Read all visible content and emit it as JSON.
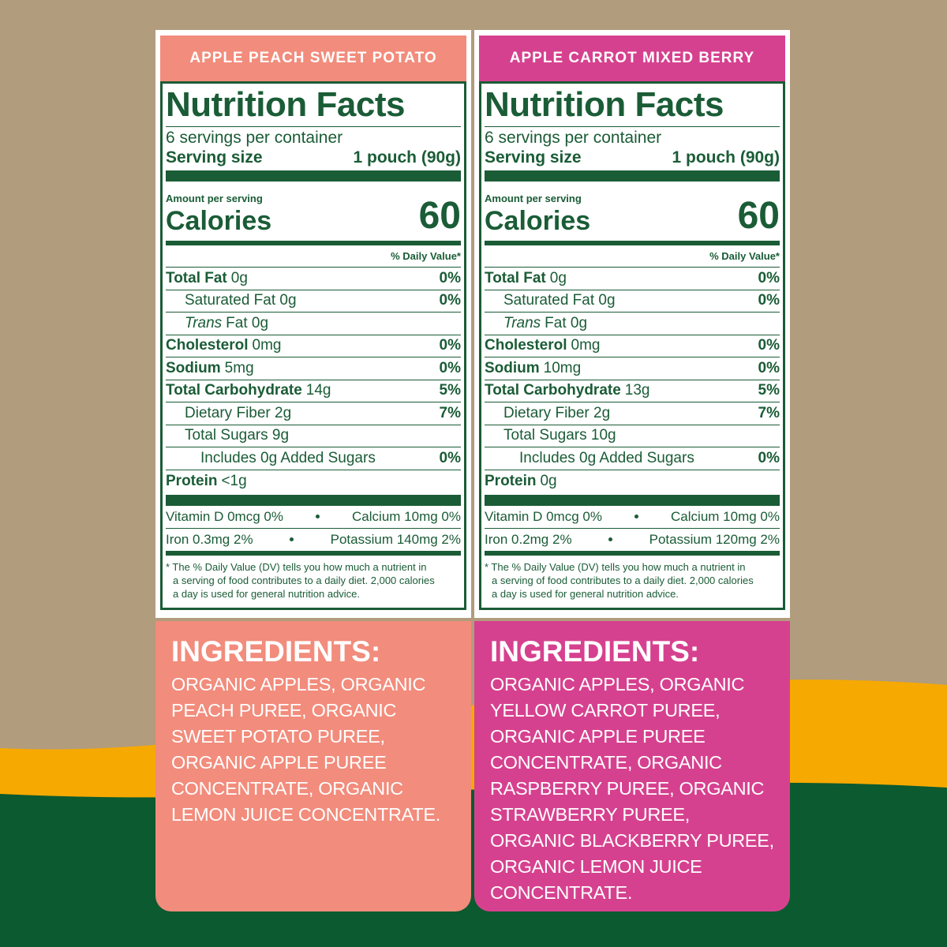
{
  "panels": [
    {
      "product": "APPLE PEACH SWEET POTATO",
      "color": "#f28c7c",
      "nutrition": {
        "title": "Nutrition Facts",
        "servings": "6 servings per container",
        "serving_size_label": "Serving size",
        "serving_size": "1 pouch (90g)",
        "amount_per_serving": "Amount per serving",
        "calories_label": "Calories",
        "calories": "60",
        "daily_value_header": "% Daily Value*",
        "rows": [
          {
            "name": "Total Fat",
            "amount": "0g",
            "dv": "0%"
          },
          {
            "name": "Saturated Fat 0g",
            "dv": "0%"
          },
          {
            "italic": "Trans",
            "name": "Fat 0g"
          },
          {
            "name": "Cholesterol",
            "amount": "0mg",
            "dv": "0%"
          },
          {
            "name": "Sodium",
            "amount": "5mg",
            "dv": "0%"
          },
          {
            "name": "Total Carbohydrate",
            "amount": "14g",
            "dv": "5%"
          },
          {
            "name": "Dietary Fiber 2g",
            "dv": "7%"
          },
          {
            "name": "Total Sugars 9g"
          },
          {
            "name": "Includes 0g Added Sugars",
            "dv": "0%"
          },
          {
            "name": "Protein",
            "amount": "<1g"
          }
        ],
        "vitamins": [
          [
            "Vitamin D 0mcg 0%",
            "Calcium 10mg 0%"
          ],
          [
            "Iron 0.3mg 2%",
            "Potassium 140mg 2%"
          ]
        ],
        "footnote": [
          "* The % Daily Value (DV) tells you how much a nutrient in",
          "a serving of food contributes to a daily diet. 2,000 calories",
          "a day is used for general nutrition advice."
        ]
      },
      "ingredients": {
        "heading": "INGREDIENTS:",
        "lines": [
          "ORGANIC APPLES, ORGANIC",
          "PEACH PUREE, ORGANIC",
          "SWEET POTATO PUREE,",
          "ORGANIC APPLE PUREE",
          "CONCENTRATE, ORGANIC",
          "LEMON JUICE CONCENTRATE."
        ]
      }
    },
    {
      "product": "APPLE CARROT MIXED BERRY",
      "color": "#d6418f",
      "nutrition": {
        "title": "Nutrition Facts",
        "servings": "6 servings per container",
        "serving_size_label": "Serving size",
        "serving_size": "1 pouch (90g)",
        "amount_per_serving": "Amount per serving",
        "calories_label": "Calories",
        "calories": "60",
        "daily_value_header": "% Daily Value*",
        "rows": [
          {
            "name": "Total Fat",
            "amount": "0g",
            "dv": "0%"
          },
          {
            "name": "Saturated Fat 0g",
            "dv": "0%"
          },
          {
            "italic": "Trans",
            "name": "Fat 0g"
          },
          {
            "name": "Cholesterol",
            "amount": "0mg",
            "dv": "0%"
          },
          {
            "name": "Sodium",
            "amount": "10mg",
            "dv": "0%"
          },
          {
            "name": "Total Carbohydrate",
            "amount": "13g",
            "dv": "5%"
          },
          {
            "name": "Dietary Fiber 2g",
            "dv": "7%"
          },
          {
            "name": "Total Sugars 10g"
          },
          {
            "name": "Includes 0g Added Sugars",
            "dv": "0%"
          },
          {
            "name": "Protein",
            "amount": "0g"
          }
        ],
        "vitamins": [
          [
            "Vitamin D 0mcg 0%",
            "Calcium 10mg 0%"
          ],
          [
            "Iron 0.2mg 2%",
            "Potassium 120mg 2%"
          ]
        ],
        "footnote": [
          "* The % Daily Value (DV) tells you how much a nutrient in",
          "a serving of food contributes to a daily diet. 2,000 calories",
          "a day is used for general nutrition advice."
        ]
      },
      "ingredients": {
        "heading": "INGREDIENTS:",
        "lines": [
          "ORGANIC APPLES, ORGANIC",
          "YELLOW CARROT PUREE,",
          "ORGANIC APPLE PUREE",
          "CONCENTRATE, ORGANIC",
          "RASPBERRY PUREE, ORGANIC",
          "STRAWBERRY PUREE,",
          "ORGANIC BLACKBERRY PUREE,",
          "ORGANIC LEMON JUICE",
          "CONCENTRATE."
        ]
      }
    }
  ]
}
